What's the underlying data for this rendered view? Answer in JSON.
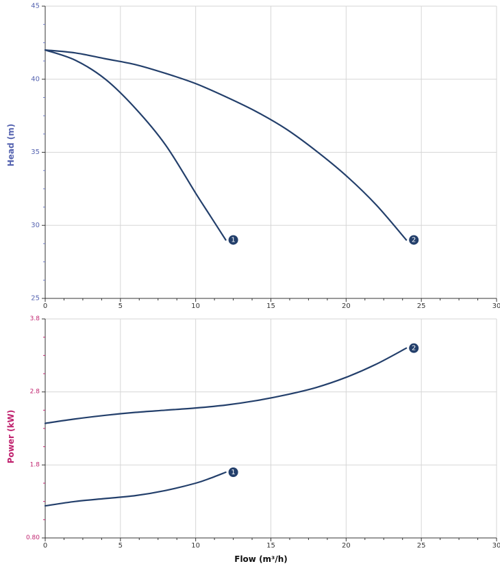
{
  "chart_data": [
    {
      "type": "line",
      "panel": "head",
      "ylabel": "Head (m)",
      "xlim": [
        0,
        30
      ],
      "ylim": [
        25,
        45
      ],
      "xticks": [
        0,
        5,
        10,
        15,
        20,
        25,
        30
      ],
      "yticks": [
        25,
        30,
        35,
        40,
        45
      ],
      "grid": true,
      "colors": {
        "axis_label": "#5563b0",
        "curve": "#233f6b"
      },
      "series": [
        {
          "name": "1",
          "x": [
            0,
            2,
            4,
            6,
            8,
            10,
            11,
            12
          ],
          "y": [
            42.0,
            41.3,
            40.0,
            38.0,
            35.5,
            32.2,
            30.6,
            29.0
          ]
        },
        {
          "name": "2",
          "x": [
            0,
            2,
            4,
            6,
            8,
            10,
            12,
            14,
            16,
            18,
            20,
            22,
            24
          ],
          "y": [
            42.0,
            41.8,
            41.4,
            41.0,
            40.4,
            39.7,
            38.8,
            37.8,
            36.6,
            35.1,
            33.4,
            31.4,
            29.0
          ]
        }
      ]
    },
    {
      "type": "line",
      "panel": "power",
      "ylabel": "Power (kW)",
      "xlabel": "Flow (m³/h)",
      "xlim": [
        0,
        30
      ],
      "ylim": [
        0.8,
        3.8
      ],
      "xticks": [
        0,
        5,
        10,
        15,
        20,
        25,
        30
      ],
      "yticks": [
        0.8,
        1.8,
        2.8,
        3.8
      ],
      "ytick_labels": [
        "0.80",
        "1.8",
        "2.8",
        "3.8"
      ],
      "grid": true,
      "colors": {
        "axis_label": "#c0226e",
        "curve": "#233f6b"
      },
      "series": [
        {
          "name": "1",
          "x": [
            0,
            2,
            4,
            6,
            8,
            10,
            11,
            12
          ],
          "y": [
            1.24,
            1.3,
            1.34,
            1.38,
            1.45,
            1.55,
            1.62,
            1.7
          ]
        },
        {
          "name": "2",
          "x": [
            0,
            2,
            4,
            6,
            8,
            10,
            12,
            14,
            16,
            18,
            20,
            22,
            24
          ],
          "y": [
            2.37,
            2.43,
            2.48,
            2.52,
            2.55,
            2.58,
            2.62,
            2.68,
            2.76,
            2.86,
            3.0,
            3.18,
            3.4
          ]
        }
      ]
    }
  ]
}
